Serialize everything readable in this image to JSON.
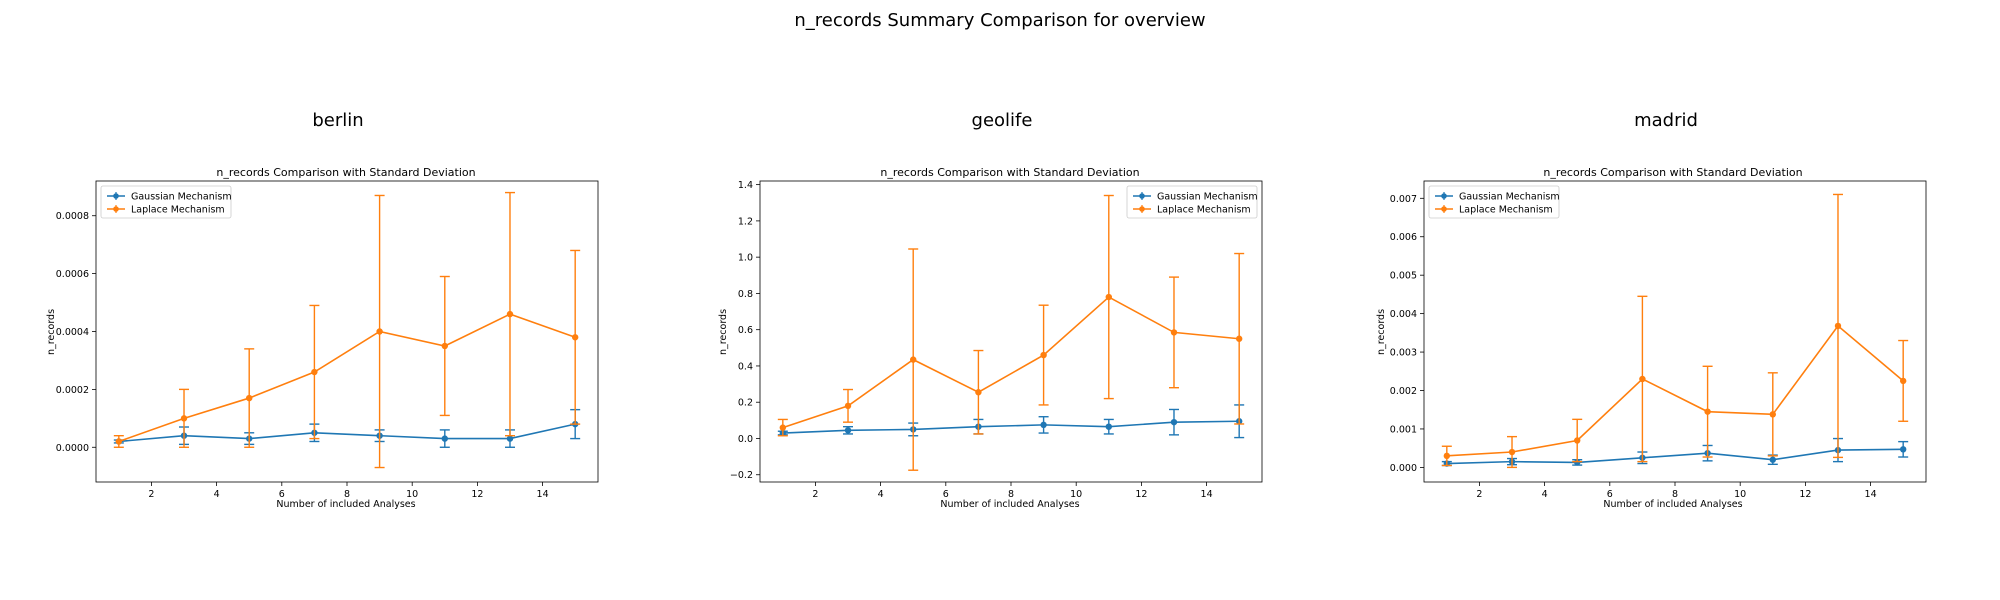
{
  "suptitle": "n_records Summary Comparison for overview",
  "colors": {
    "gaussian": "#1f77b4",
    "laplace": "#ff7f0e"
  },
  "chart_data": [
    {
      "type": "line",
      "panel_title": "berlin",
      "title": "n_records Comparison with Standard Deviation",
      "xlabel": "Number of included Analyses",
      "ylabel": "n_records",
      "xlim": [
        0.3,
        15.7
      ],
      "ylim": [
        -0.00012,
        0.00092
      ],
      "xticks": [
        2,
        4,
        6,
        8,
        10,
        12,
        14
      ],
      "yticks": [
        0,
        0.0002,
        0.0004,
        0.0006,
        0.0008
      ],
      "ytick_labels": [
        "0.0000",
        "0.0002",
        "0.0004",
        "0.0006",
        "0.0008"
      ],
      "legend_position": "upper-left",
      "x": [
        1,
        3,
        5,
        7,
        9,
        11,
        13,
        15
      ],
      "series": [
        {
          "name": "Gaussian Mechanism",
          "color": "#1f77b4",
          "values": [
            2e-05,
            4e-05,
            3e-05,
            5e-05,
            4e-05,
            3e-05,
            3e-05,
            8e-05
          ],
          "std": [
            5e-06,
            3e-05,
            2e-05,
            3e-05,
            2e-05,
            3e-05,
            3e-05,
            5e-05
          ]
        },
        {
          "name": "Laplace Mechanism",
          "color": "#ff7f0e",
          "values": [
            2e-05,
            0.0001,
            0.00017,
            0.00026,
            0.0004,
            0.00035,
            0.00046,
            0.00038
          ],
          "std": [
            2e-05,
            0.0001,
            0.00017,
            0.00023,
            0.00047,
            0.00024,
            0.00042,
            0.0003
          ]
        }
      ]
    },
    {
      "type": "line",
      "panel_title": "geolife",
      "title": "n_records Comparison with Standard Deviation",
      "xlabel": "Number of included Analyses",
      "ylabel": "n_records",
      "xlim": [
        0.3,
        15.7
      ],
      "ylim": [
        -0.24,
        1.42
      ],
      "xticks": [
        2,
        4,
        6,
        8,
        10,
        12,
        14
      ],
      "yticks": [
        -0.2,
        0,
        0.2,
        0.4,
        0.6,
        0.8,
        1.0,
        1.2,
        1.4
      ],
      "ytick_labels": [
        "−0.2",
        "0.0",
        "0.2",
        "0.4",
        "0.6",
        "0.8",
        "1.0",
        "1.2",
        "1.4"
      ],
      "legend_position": "upper-right",
      "x": [
        1,
        3,
        5,
        7,
        9,
        11,
        13,
        15
      ],
      "series": [
        {
          "name": "Gaussian Mechanism",
          "color": "#1f77b4",
          "values": [
            0.03,
            0.045,
            0.05,
            0.065,
            0.075,
            0.065,
            0.09,
            0.095
          ],
          "std": [
            0.01,
            0.02,
            0.035,
            0.04,
            0.045,
            0.04,
            0.07,
            0.09
          ]
        },
        {
          "name": "Laplace Mechanism",
          "color": "#ff7f0e",
          "values": [
            0.06,
            0.18,
            0.435,
            0.255,
            0.46,
            0.78,
            0.585,
            0.55
          ],
          "std": [
            0.045,
            0.09,
            0.61,
            0.23,
            0.275,
            0.56,
            0.305,
            0.47
          ]
        }
      ]
    },
    {
      "type": "line",
      "panel_title": "madrid",
      "title": "n_records Comparison with Standard Deviation",
      "xlabel": "Number of included Analyses",
      "ylabel": "n_records",
      "xlim": [
        0.3,
        15.7
      ],
      "ylim": [
        -0.00038,
        0.00745
      ],
      "xticks": [
        2,
        4,
        6,
        8,
        10,
        12,
        14
      ],
      "yticks": [
        0,
        0.001,
        0.002,
        0.003,
        0.004,
        0.005,
        0.006,
        0.007
      ],
      "ytick_labels": [
        "0.000",
        "0.001",
        "0.002",
        "0.003",
        "0.004",
        "0.005",
        "0.006",
        "0.007"
      ],
      "legend_position": "upper-left",
      "x": [
        1,
        3,
        5,
        7,
        9,
        11,
        13,
        15
      ],
      "series": [
        {
          "name": "Gaussian Mechanism",
          "color": "#1f77b4",
          "values": [
            0.0001,
            0.00015,
            0.00013,
            0.00025,
            0.00037,
            0.0002,
            0.00045,
            0.00047
          ],
          "std": [
            5e-05,
            8e-05,
            7e-05,
            0.00015,
            0.0002,
            0.00012,
            0.0003,
            0.0002
          ]
        },
        {
          "name": "Laplace Mechanism",
          "color": "#ff7f0e",
          "values": [
            0.0003,
            0.0004,
            0.0007,
            0.0023,
            0.00145,
            0.00138,
            0.00368,
            0.00225
          ],
          "std": [
            0.00025,
            0.0004,
            0.00055,
            0.00215,
            0.00118,
            0.00108,
            0.00342,
            0.00105
          ]
        }
      ]
    }
  ]
}
